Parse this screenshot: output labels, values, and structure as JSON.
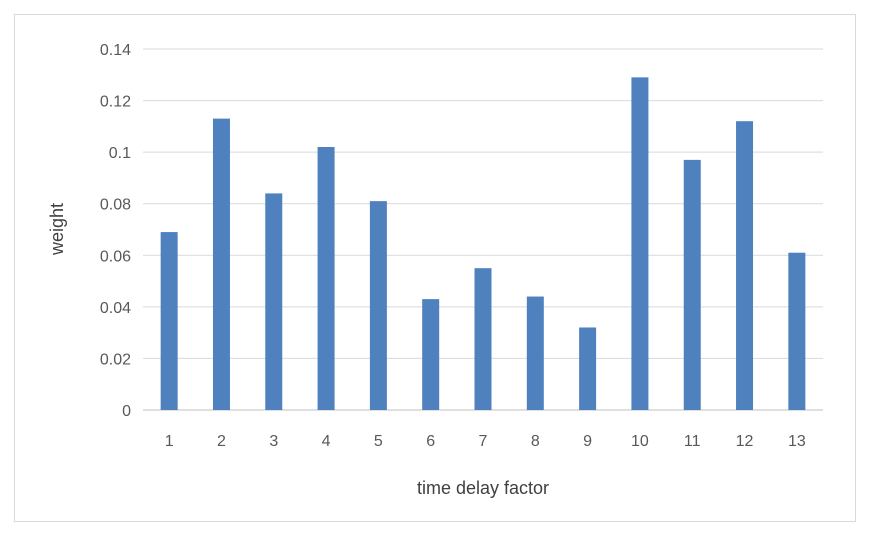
{
  "chart_data": {
    "type": "bar",
    "categories": [
      "1",
      "2",
      "3",
      "4",
      "5",
      "6",
      "7",
      "8",
      "9",
      "10",
      "11",
      "12",
      "13"
    ],
    "values": [
      0.069,
      0.113,
      0.084,
      0.102,
      0.081,
      0.043,
      0.055,
      0.044,
      0.032,
      0.129,
      0.097,
      0.112,
      0.061
    ],
    "title": "",
    "xlabel": "time delay factor",
    "ylabel": "weight",
    "ylim": [
      0,
      0.14
    ],
    "yticks": [
      "0",
      "0.02",
      "0.04",
      "0.06",
      "0.08",
      "0.1",
      "0.12",
      "0.14"
    ],
    "grid": true,
    "legend": "none",
    "bar_color": "#4e81bd",
    "grid_color": "#d9d9d9"
  }
}
